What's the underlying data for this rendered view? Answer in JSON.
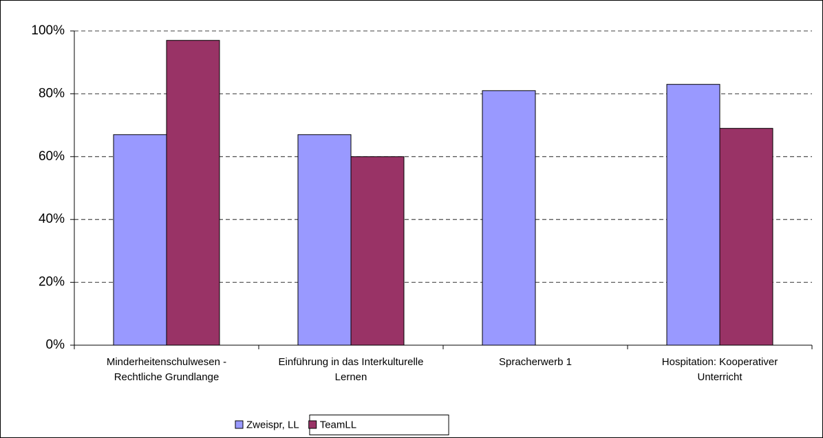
{
  "chart_data": {
    "type": "bar",
    "categories": [
      "Minderheitenschulwesen - Rechtliche Grundlange",
      "Einführung in das Interkulturelle Lernen",
      "Spracherwerb 1",
      "Hospitation: Kooperativer Unterricht"
    ],
    "series": [
      {
        "name": "Zweispr, LL",
        "color": "#9999ff",
        "values": [
          67,
          67,
          81,
          83
        ]
      },
      {
        "name": "TeamLL",
        "color": "#993366",
        "values": [
          97,
          60,
          null,
          69
        ]
      }
    ],
    "ylim": [
      0,
      100
    ],
    "yticks": [
      {
        "value": 0,
        "label": "0%"
      },
      {
        "value": 20,
        "label": "20%"
      },
      {
        "value": 40,
        "label": "40%"
      },
      {
        "value": 60,
        "label": "60%"
      },
      {
        "value": 80,
        "label": "80%"
      },
      {
        "value": 100,
        "label": "100%"
      }
    ],
    "grid": true,
    "legend": "bottom"
  }
}
